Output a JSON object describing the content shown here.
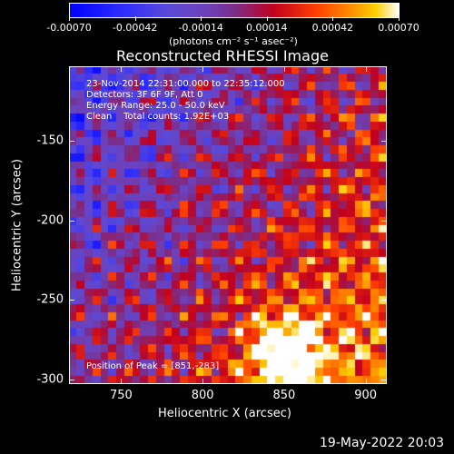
{
  "colorbar": {
    "tick_labels": [
      "-0.00070",
      "-0.00042",
      "-0.00014",
      "0.00014",
      "0.00042",
      "0.00070"
    ],
    "units": "(photons cm⁻² s⁻¹ asec⁻²)"
  },
  "chart_data": {
    "type": "heatmap",
    "title": "Reconstructed RHESSI Image",
    "xlabel": "Heliocentric X (arcsec)",
    "ylabel": "Heliocentric Y (arcsec)",
    "xlim": [
      718,
      913
    ],
    "ylim": [
      -303,
      -103
    ],
    "xticks": [
      750,
      800,
      850,
      900
    ],
    "yticks": [
      -150,
      -200,
      -250,
      -300
    ],
    "xtick_labels": [
      "750",
      "800",
      "850",
      "900"
    ],
    "ytick_labels": [
      "-150",
      "-200",
      "-250",
      "-300"
    ],
    "zlim": [
      -0.0007,
      0.0007
    ],
    "peak": [
      851,
      -283
    ],
    "annotations": [
      "23-Nov-2014 22:31:00.000 to 22:35:12.000",
      "Detectors: 3F 6F 9F, Att 0",
      "Energy Range: 25.0 - 50.0 keV",
      "Clean    Total counts: 1.92E+03",
      "Position of Peak = [851,-283]"
    ]
  },
  "footer": {
    "timestamp": "19-May-2022 20:03"
  },
  "colors": {
    "background": "#000000",
    "foreground": "#ffffff"
  }
}
